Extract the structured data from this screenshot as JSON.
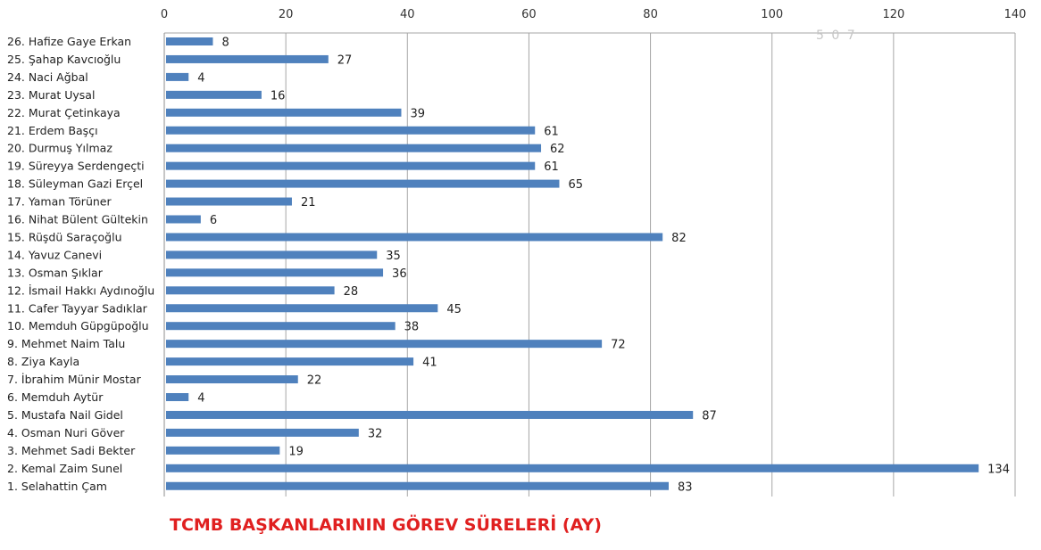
{
  "chart_data": {
    "type": "bar",
    "orientation": "horizontal",
    "title": "TCMB BAŞKANLARININ GÖREV SÜRELERİ (AY)",
    "watermark": "5 0 7",
    "xlim": [
      0,
      140
    ],
    "xticks": [
      0,
      20,
      40,
      60,
      80,
      100,
      120,
      140
    ],
    "grid": true,
    "bar_color": "#4f81bd",
    "title_color": "#e02020",
    "categories": [
      "26. Hafize Gaye Erkan",
      "25. Şahap Kavcıoğlu",
      "24. Naci Ağbal",
      "23. Murat Uysal",
      "22. Murat Çetinkaya",
      "21. Erdem Başçı",
      "20. Durmuş Yılmaz",
      "19. Süreyya Serdengeçti",
      "18. Süleyman Gazi Erçel",
      "17. Yaman Törüner",
      "16. Nihat Bülent Gültekin",
      "15. Rüşdü Saraçoğlu",
      "14. Yavuz Canevi",
      "13. Osman Şıklar",
      "12. İsmail Hakkı Aydınoğlu",
      "11. Cafer Tayyar Sadıklar",
      "10. Memduh Güpgüpoğlu",
      "9. Mehmet Naim Talu",
      "8. Ziya Kayla",
      "7. İbrahim Münir Mostar",
      "6. Memduh Aytür",
      "5. Mustafa Nail Gidel",
      "4. Osman Nuri Göver",
      "3. Mehmet Sadi Bekter",
      "2. Kemal Zaim Sunel",
      "1. Selahattin Çam"
    ],
    "values": [
      8,
      27,
      4,
      16,
      39,
      61,
      62,
      61,
      65,
      21,
      6,
      82,
      35,
      36,
      28,
      45,
      38,
      72,
      41,
      22,
      4,
      87,
      32,
      19,
      134,
      83
    ]
  }
}
